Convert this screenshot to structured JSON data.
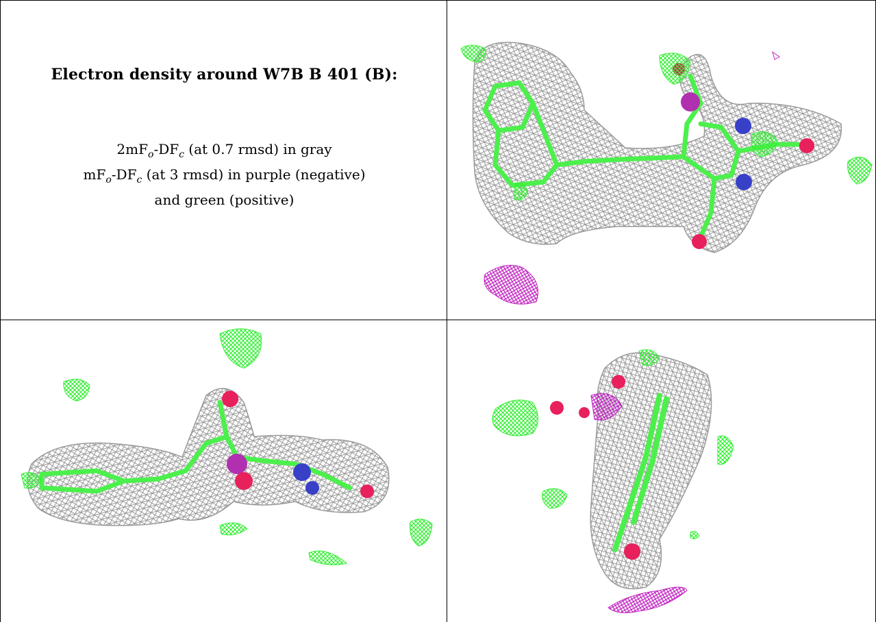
{
  "title": "Electron density around W7B B 401 (B):",
  "legend": {
    "line1": {
      "pre": "2mF",
      "sub1": "o",
      "mid": "-DF",
      "sub2": "c",
      "post": " (at 0.7 rmsd) in gray"
    },
    "line2": {
      "pre": "mF",
      "sub1": "o",
      "mid": "-DF",
      "sub2": "c",
      "post": " (at 3 rmsd) in purple (negative)"
    },
    "line3": "and green (positive)"
  },
  "colors": {
    "mesh_2fofc": "#9a9a9a",
    "mesh_negative": "#c020c0",
    "mesh_positive": "#33ee33",
    "carbon": "#4cf04c",
    "oxygen": "#e8205c",
    "nitrogen": "#3840c8"
  },
  "panels": [
    {
      "name": "view-1",
      "description_icon": "electron-density-view"
    },
    {
      "name": "view-2",
      "description_icon": "electron-density-view"
    },
    {
      "name": "view-3",
      "description_icon": "electron-density-view"
    }
  ]
}
